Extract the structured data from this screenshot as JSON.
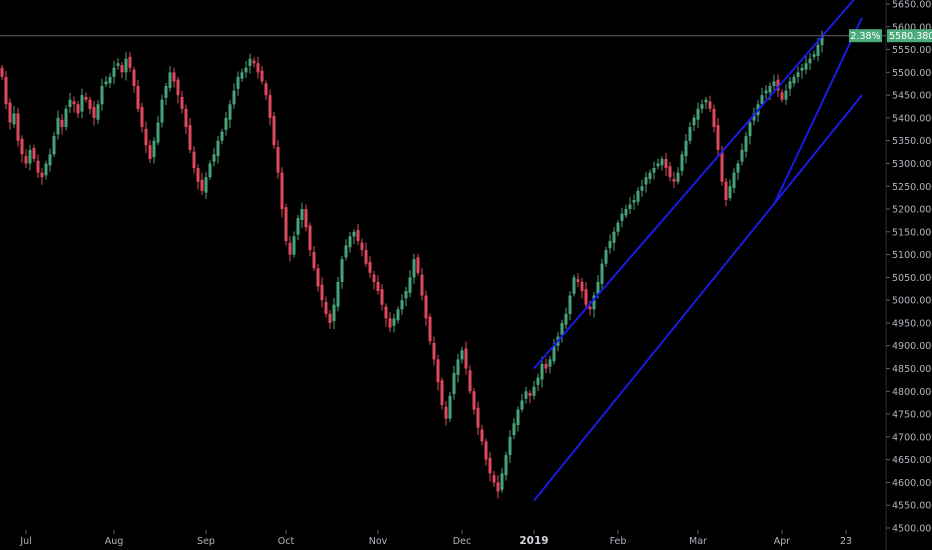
{
  "chart_data": {
    "type": "candlestick",
    "colors": {
      "background": "#000000",
      "up": "#49a37a",
      "down": "#e0485d",
      "trendline": "#1a1ae6",
      "last_price_badge": "#4cab7a",
      "last_price_line": "#5d606b",
      "axis_text": "#b2b5be"
    },
    "y_axis": {
      "position": "right",
      "ylim": [
        4500,
        5650
      ],
      "ticks": [
        "4500.000",
        "4550.000",
        "4600.000",
        "4650.000",
        "4700.000",
        "4750.000",
        "4800.000",
        "4850.000",
        "4900.000",
        "4950.000",
        "5000.000",
        "5050.000",
        "5100.000",
        "5150.000",
        "5200.000",
        "5250.000",
        "5300.000",
        "5350.000",
        "5400.000",
        "5450.000",
        "5500.000",
        "5550.000",
        "5600.000",
        "5650.000"
      ]
    },
    "x_axis": {
      "labels": [
        {
          "text": "Jul",
          "bar": 6,
          "bold": false
        },
        {
          "text": "Aug",
          "bar": 28,
          "bold": false
        },
        {
          "text": "Sep",
          "bar": 51,
          "bold": false
        },
        {
          "text": "Oct",
          "bar": 71,
          "bold": false
        },
        {
          "text": "Nov",
          "bar": 94,
          "bold": false
        },
        {
          "text": "Dec",
          "bar": 115,
          "bold": false
        },
        {
          "text": "2019",
          "bar": 133,
          "bold": true
        },
        {
          "text": "Feb",
          "bar": 154,
          "bold": false
        },
        {
          "text": "Mar",
          "bar": 174,
          "bold": false
        },
        {
          "text": "Apr",
          "bar": 195,
          "bold": false
        },
        {
          "text": "23",
          "bar": 211,
          "bold": false
        }
      ]
    },
    "last_price": 5580.38,
    "last_price_label": "5580.380",
    "last_change_label": "2.38%",
    "closes": [
      5490,
      5430,
      5390,
      5410,
      5350,
      5320,
      5300,
      5330,
      5310,
      5280,
      5270,
      5300,
      5320,
      5360,
      5400,
      5380,
      5420,
      5440,
      5430,
      5410,
      5450,
      5440,
      5420,
      5400,
      5430,
      5470,
      5480,
      5490,
      5510,
      5520,
      5500,
      5530,
      5510,
      5470,
      5420,
      5380,
      5340,
      5310,
      5350,
      5390,
      5440,
      5470,
      5500,
      5480,
      5450,
      5420,
      5380,
      5330,
      5290,
      5260,
      5240,
      5270,
      5300,
      5320,
      5350,
      5370,
      5400,
      5430,
      5460,
      5490,
      5500,
      5510,
      5530,
      5520,
      5500,
      5480,
      5450,
      5400,
      5340,
      5280,
      5200,
      5130,
      5100,
      5140,
      5180,
      5200,
      5160,
      5110,
      5070,
      5030,
      5000,
      4970,
      4950,
      4990,
      5040,
      5090,
      5120,
      5140,
      5150,
      5130,
      5110,
      5080,
      5060,
      5040,
      5020,
      4990,
      4960,
      4940,
      4960,
      4980,
      5000,
      5020,
      5050,
      5090,
      5060,
      5010,
      4960,
      4910,
      4870,
      4820,
      4770,
      4740,
      4790,
      4840,
      4870,
      4890,
      4850,
      4800,
      4760,
      4720,
      4690,
      4650,
      4620,
      4600,
      4580,
      4620,
      4660,
      4700,
      4730,
      4760,
      4780,
      4800,
      4790,
      4810,
      4830,
      4860,
      4850,
      4870,
      4900,
      4920,
      4950,
      4970,
      5010,
      5050,
      5040,
      5020,
      4990,
      4980,
      5010,
      5040,
      5080,
      5110,
      5130,
      5150,
      5170,
      5190,
      5200,
      5210,
      5220,
      5240,
      5250,
      5270,
      5280,
      5290,
      5300,
      5310,
      5290,
      5270,
      5260,
      5280,
      5320,
      5350,
      5380,
      5400,
      5420,
      5430,
      5440,
      5420,
      5380,
      5330,
      5260,
      5220,
      5250,
      5280,
      5300,
      5330,
      5360,
      5390,
      5410,
      5430,
      5450,
      5460,
      5470,
      5480,
      5460,
      5440,
      5460,
      5480,
      5490,
      5500,
      5510,
      5520,
      5530,
      5540,
      5560,
      5580.38
    ],
    "trendlines": [
      {
        "from": {
          "bar": 133,
          "value": 4850
        },
        "to": {
          "bar": 215,
          "value": 5680
        }
      },
      {
        "from": {
          "bar": 133,
          "value": 4560
        },
        "to": {
          "bar": 215,
          "value": 5450
        }
      },
      {
        "from": {
          "bar": 193,
          "value": 5210
        },
        "to": {
          "bar": 215,
          "value": 5620
        }
      }
    ]
  }
}
